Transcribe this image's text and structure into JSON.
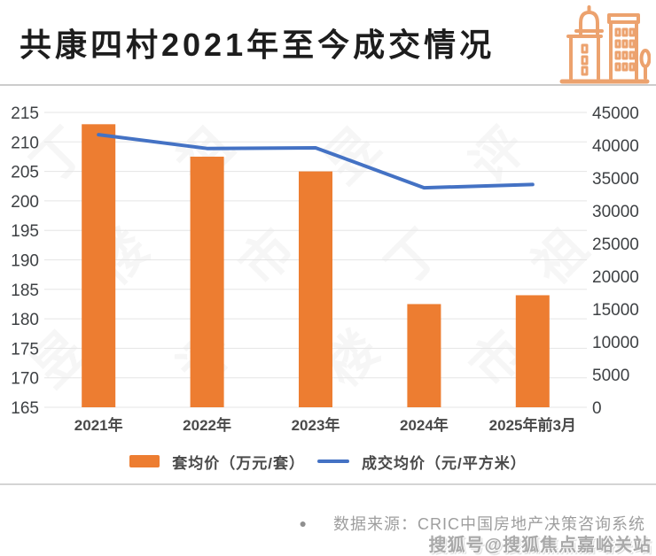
{
  "header": {
    "title": "共康四村2021年至今成交情况",
    "icon": "buildings-icon"
  },
  "chart_data": {
    "type": "bar",
    "subtype": "bar+line dual axis",
    "categories": [
      "2021年",
      "2022年",
      "2023年",
      "2024年",
      "2025年前3月"
    ],
    "series": [
      {
        "name": "套均价（万元/套）",
        "type": "bar",
        "axis": "left",
        "color": "#ED7D31",
        "values": [
          213,
          207.5,
          205,
          182.5,
          184
        ]
      },
      {
        "name": "成交均价（元/平方米）",
        "type": "line",
        "axis": "right",
        "color": "#4472C4",
        "values": [
          41600,
          39500,
          39600,
          33500,
          34000
        ]
      }
    ],
    "left_axis": {
      "min": 165,
      "max": 215,
      "step": 5,
      "ticks": [
        215,
        210,
        205,
        200,
        195,
        190,
        185,
        180,
        175,
        170,
        165
      ]
    },
    "right_axis": {
      "min": 0,
      "max": 45000,
      "step": 5000,
      "ticks": [
        45000,
        40000,
        35000,
        30000,
        25000,
        20000,
        15000,
        10000,
        5000,
        0
      ]
    },
    "grid": true,
    "legend_position": "bottom",
    "title": "共康四村2021年至今成交情况"
  },
  "watermark": {
    "chart_text": "丁祖昱评楼市",
    "bottom_text": "搜狐号@搜狐焦点嘉峪关站"
  },
  "footer": {
    "bullet": "●",
    "source": "数据来源：CRIC中国房地产决策咨询系统"
  },
  "colors": {
    "bar": "#ED7D31",
    "line": "#4472C4",
    "icon": "#ECA26E",
    "title_text": "#1D1D1D",
    "axis_text": "#3E4144",
    "category_text": "#4A4A4A",
    "gridline": "#E5E5E5",
    "source_text": "#9E9E9E"
  }
}
